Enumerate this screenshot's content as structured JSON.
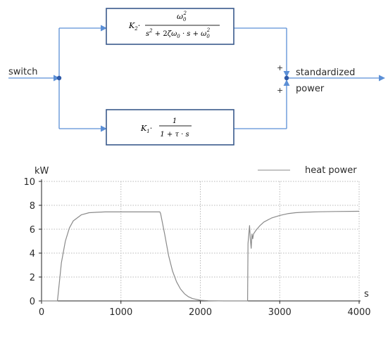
{
  "block_diagram": {
    "input_label": "switch",
    "output_label_line1": "standardized",
    "output_label_line2": "power",
    "sum_sign_top": "+",
    "sum_sign_bottom": "+",
    "upper_block": {
      "gain": "K",
      "gain_sub": "2",
      "dot": "·",
      "num_base": "ω",
      "num_sub": "0",
      "num_sup": "2",
      "den": {
        "s": "s",
        "sup2": "2",
        "plus1": " + 2",
        "zeta": "ζω",
        "zeta_sub": "0",
        "mid": " · s + ω",
        "end_sub": "0",
        "end_sup": "2"
      }
    },
    "lower_block": {
      "gain": "K",
      "gain_sub": "1",
      "dot": "·",
      "num": "1",
      "den": "1 + τ · s"
    },
    "colors": {
      "line": "#5b8fd6",
      "block_border": "#3a5a8c",
      "dot": "#2f5aa8"
    }
  },
  "chart_data": {
    "type": "line",
    "ylabel": "kW",
    "xlabel": "s",
    "legend": "heat power",
    "legend_position": "top-right",
    "grid": true,
    "xlim": [
      0,
      4000
    ],
    "ylim": [
      0,
      10
    ],
    "x_ticks": [
      0,
      1000,
      2000,
      3000,
      4000
    ],
    "y_ticks": [
      0,
      2,
      4,
      6,
      8,
      10
    ],
    "line_color": "#8a8a8a",
    "series": [
      {
        "x": [
          0,
          200,
          205,
          250,
          300,
          350,
          400,
          500,
          600,
          700,
          800,
          1000,
          1200,
          1490,
          1500,
          1550,
          1600,
          1650,
          1700,
          1750,
          1800,
          1850,
          1900,
          2000,
          2100,
          2300,
          2500,
          2595,
          2600,
          2620,
          2630,
          2640,
          2650,
          2660,
          2670,
          2700,
          2750,
          2800,
          2900,
          3000,
          3100,
          3200,
          3300,
          3500,
          3700,
          4000
        ],
        "values": [
          0,
          0,
          0.3,
          3.2,
          5.0,
          6.1,
          6.7,
          7.2,
          7.38,
          7.42,
          7.45,
          7.45,
          7.45,
          7.45,
          7.3,
          5.6,
          3.8,
          2.5,
          1.6,
          1.0,
          0.6,
          0.35,
          0.2,
          0.05,
          0.02,
          0,
          0,
          0,
          4.8,
          6.3,
          5.2,
          4.4,
          5.6,
          5.2,
          5.6,
          5.9,
          6.3,
          6.6,
          6.95,
          7.15,
          7.3,
          7.38,
          7.42,
          7.46,
          7.48,
          7.5
        ]
      }
    ]
  }
}
